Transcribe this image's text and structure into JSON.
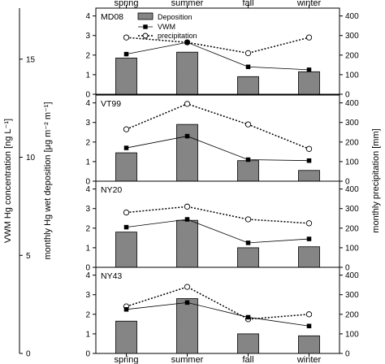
{
  "chart_data": {
    "type": "bar",
    "categories": [
      "spring",
      "summer",
      "fall",
      "winter"
    ],
    "left_axis_outer_label": "VWM Hg concentration [ng L⁻¹]",
    "left_axis_inner_label": "monthly Hg wet deposition [μg m⁻² m⁻¹]",
    "right_axis_label": "monthly precipitation [mm]",
    "left_ticks": [
      0,
      1,
      2,
      3,
      4
    ],
    "right_ticks": [
      0,
      100,
      200,
      300,
      400
    ],
    "outer_ticks": [
      0,
      5,
      10,
      15
    ],
    "ylim_left": [
      0,
      4.4
    ],
    "ylim_right": [
      0,
      440
    ],
    "legend": {
      "placement": "top-center (first panel)",
      "entries": [
        "Deposition",
        "VWM",
        "precipitation"
      ]
    },
    "colors": {
      "bar_fill": "#8c8c8c",
      "line": "#000000"
    },
    "panels": [
      {
        "id": "MD08",
        "deposition": [
          1.85,
          2.15,
          0.9,
          1.15
        ],
        "vwm": [
          2.05,
          2.65,
          1.4,
          1.25
        ],
        "precipitation": [
          290,
          265,
          210,
          290
        ]
      },
      {
        "id": "VT99",
        "deposition": [
          1.45,
          2.9,
          1.05,
          0.55
        ],
        "vwm": [
          1.7,
          2.3,
          1.1,
          1.05
        ],
        "precipitation": [
          265,
          395,
          290,
          165
        ]
      },
      {
        "id": "NY20",
        "deposition": [
          1.8,
          2.4,
          1.0,
          1.05
        ],
        "vwm": [
          2.05,
          2.45,
          1.25,
          1.45
        ],
        "precipitation": [
          280,
          310,
          245,
          225
        ]
      },
      {
        "id": "NY43",
        "deposition": [
          1.65,
          2.8,
          1.0,
          0.9
        ],
        "vwm": [
          2.25,
          2.6,
          1.85,
          1.4
        ],
        "precipitation": [
          240,
          340,
          175,
          200
        ]
      }
    ]
  }
}
